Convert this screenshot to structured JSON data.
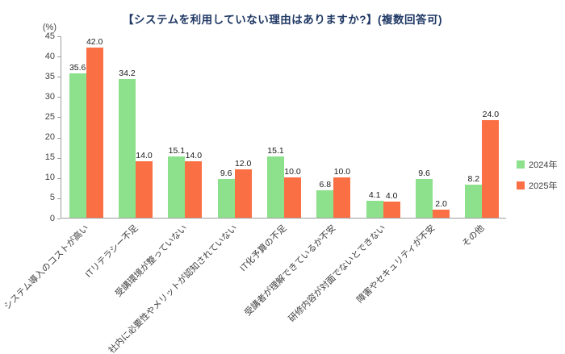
{
  "chart_data": {
    "type": "bar",
    "title": "【システムを利用していない理由はありますか?】(複数回答可)",
    "ylabel": "(%)",
    "categories": [
      "システム導入のコストが高い",
      "ITリテラシー不足",
      "受講環境が整っていない",
      "社内に必要性やメリットが認知されていない",
      "IT化予算の不足",
      "受講者が理解できているか不安",
      "研修内容が対面でないとできない",
      "障害やセキュリティが不安",
      "その他"
    ],
    "series": [
      {
        "name": "2024年",
        "color": "#8de18c",
        "values": [
          35.6,
          34.2,
          15.1,
          9.6,
          15.1,
          6.8,
          4.1,
          9.6,
          8.2
        ]
      },
      {
        "name": "2025年",
        "color": "#fa7044",
        "values": [
          42.0,
          14.0,
          14.0,
          12.0,
          10.0,
          10.0,
          4.0,
          2.0,
          24.0
        ]
      }
    ],
    "ylim": [
      0,
      45
    ],
    "ytick_step": 5,
    "grid": false,
    "value_labels": true,
    "legend_position": "right"
  }
}
